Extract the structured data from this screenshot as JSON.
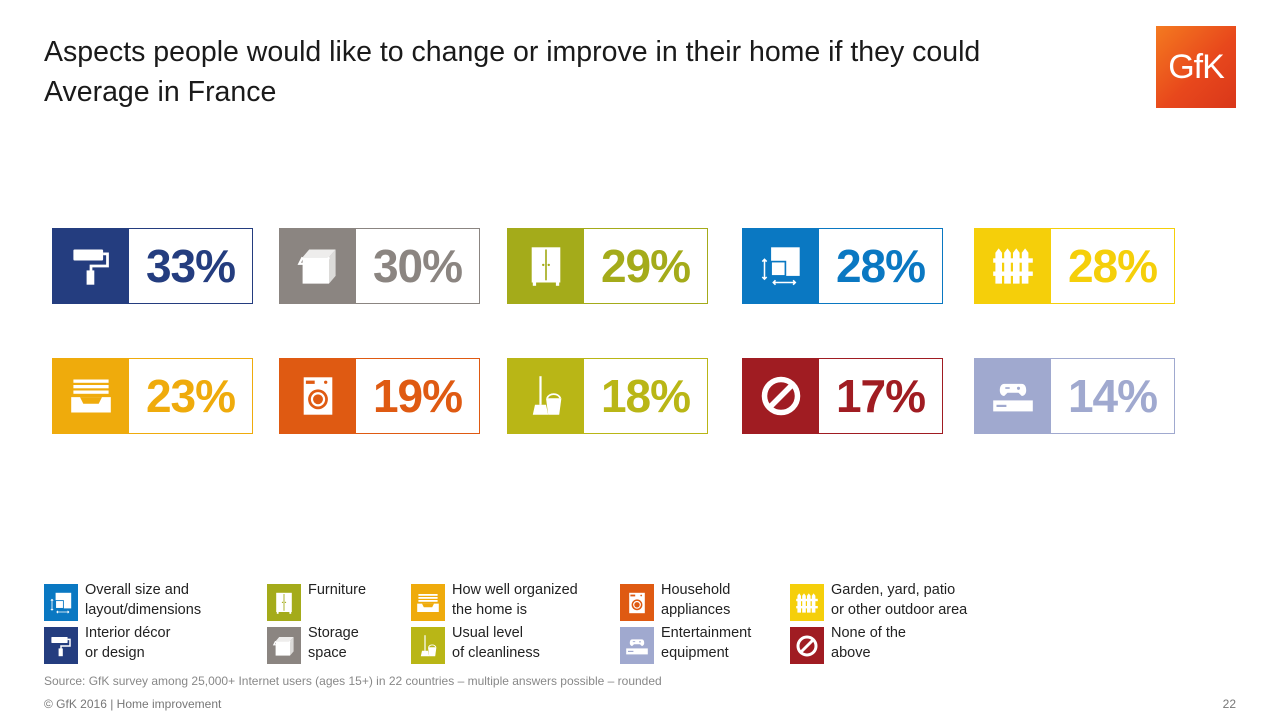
{
  "header": {
    "title_line1": "Aspects people would like to change or improve in their home if they could",
    "title_line2": "Average in France",
    "logo": "GfK"
  },
  "chart_data": {
    "type": "bar",
    "categories": [
      "Interior décor or design",
      "Storage space",
      "Furniture",
      "Overall size and layout/dimensions",
      "Garden, yard, patio or other outdoor area",
      "How well organized the home is",
      "Household appliances",
      "Usual level of cleanliness",
      "None of the above",
      "Entertainment equipment"
    ],
    "values": [
      33,
      30,
      29,
      28,
      28,
      23,
      19,
      18,
      17,
      14
    ],
    "labels": [
      "33%",
      "30%",
      "29%",
      "28%",
      "28%",
      "23%",
      "19%",
      "18%",
      "17%",
      "14%"
    ],
    "unit": "%",
    "colors": [
      "#243d7f",
      "#8b8581",
      "#a4ab1a",
      "#0a78c2",
      "#f5cf0a",
      "#efab0c",
      "#df5a12",
      "#b9b616",
      "#a01c22",
      "#a0a9cf"
    ],
    "icons": [
      "paint-roller-icon",
      "storage-box-icon",
      "wardrobe-icon",
      "floor-plan-icon",
      "fence-icon",
      "drawer-icon",
      "washing-machine-icon",
      "mop-bucket-icon",
      "prohibited-icon",
      "game-console-icon"
    ]
  },
  "legend": [
    {
      "text": "Overall size and\nlayout/dimensions",
      "color": "#0a78c2",
      "icon": "floor-plan-icon"
    },
    {
      "text": "Furniture",
      "color": "#a4ab1a",
      "icon": "wardrobe-icon"
    },
    {
      "text": "How well organized\nthe home is",
      "color": "#efab0c",
      "icon": "drawer-icon"
    },
    {
      "text": "Household\nappliances",
      "color": "#df5a12",
      "icon": "washing-machine-icon"
    },
    {
      "text": "Garden, yard, patio\nor other outdoor area",
      "color": "#f5cf0a",
      "icon": "fence-icon"
    },
    {
      "text": "Interior décor\nor design",
      "color": "#243d7f",
      "icon": "paint-roller-icon"
    },
    {
      "text": "Storage\nspace",
      "color": "#8b8581",
      "icon": "storage-box-icon"
    },
    {
      "text": "Usual level\nof cleanliness",
      "color": "#b9b616",
      "icon": "mop-bucket-icon"
    },
    {
      "text": "Entertainment\nequipment",
      "color": "#a0a9cf",
      "icon": "game-console-icon"
    },
    {
      "text": "None of the\nabove",
      "color": "#a01c22",
      "icon": "prohibited-icon"
    }
  ],
  "source": "Source: GfK survey among 25,000+ Internet users (ages 15+) in 22 countries – multiple answers possible – rounded",
  "footer": "© GfK 2016 | Home improvement",
  "page_number": "22"
}
